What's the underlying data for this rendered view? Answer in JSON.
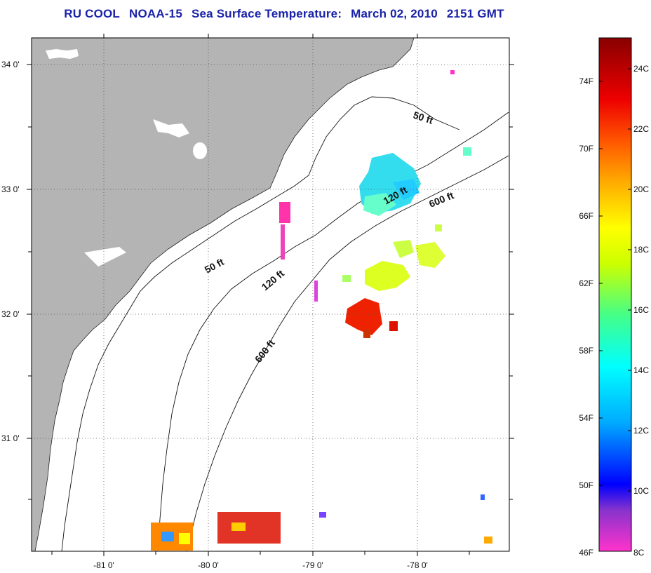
{
  "title": {
    "source": "RU COOL",
    "satellite": "NOAA-15",
    "product": "Sea Surface Temperature:",
    "date": "March 02, 2010",
    "time": "2151 GMT"
  },
  "map": {
    "lat_labels": [
      "34 0'",
      "33 0'",
      "32 0'",
      "31 0'"
    ],
    "lon_labels": [
      "-81 0'",
      "-80 0'",
      "-79 0'",
      "-78 0'"
    ],
    "land_color": "#b4b4b4",
    "grid": "dotted"
  },
  "contours": {
    "labels": [
      "50 ft",
      "50 ft",
      "120 ft",
      "120 ft",
      "600 ft",
      "600 ft"
    ]
  },
  "colorbar": {
    "fahrenheit_labels": [
      "74F",
      "70F",
      "66F",
      "62F",
      "58F",
      "54F",
      "50F",
      "46F"
    ],
    "celsius_labels": [
      "24C",
      "22C",
      "20C",
      "18C",
      "16C",
      "14C",
      "12C",
      "10C",
      "8C"
    ],
    "range_c": [
      8,
      25
    ],
    "colormap_stops": [
      "#ff33cc",
      "#8833cc",
      "#0000ff",
      "#00aaff",
      "#00ffff",
      "#44ff88",
      "#ccff00",
      "#ffff00",
      "#ffaa00",
      "#ff5500",
      "#ee0000",
      "#880000"
    ]
  }
}
